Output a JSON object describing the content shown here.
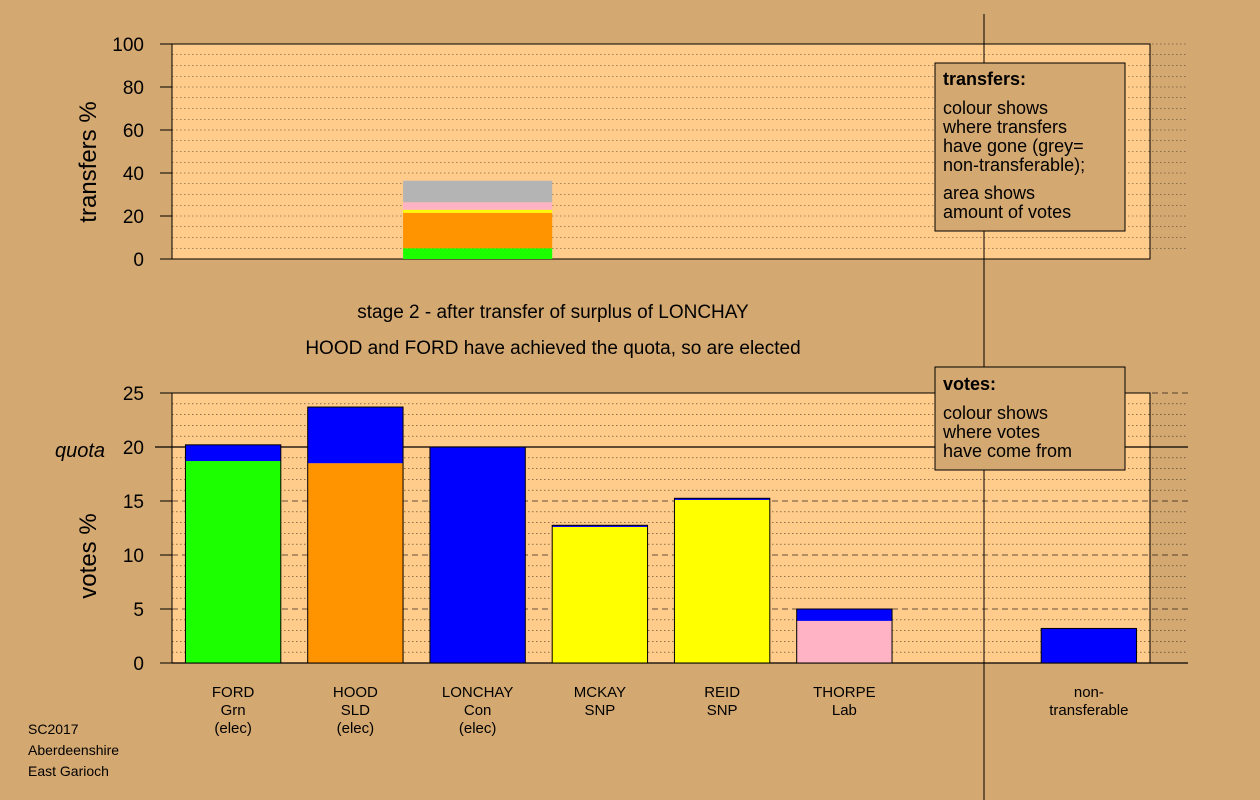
{
  "colors": {
    "background": "#d4a871",
    "plot_bg": "#ffcc8c",
    "Grn": "#1cff00",
    "SLD": "#ff9300",
    "Con": "#0000ff",
    "SNP": "#ffff00",
    "Lab": "#ffb3c4",
    "nontransferable": "#b4b4b4"
  },
  "caption": {
    "stage": "stage 2 - after transfer of surplus of LONCHAY",
    "status": "HOOD and FORD have achieved the quota, so are elected"
  },
  "footer": {
    "line1": "SC2017",
    "line2": "Aberdeenshire",
    "line3": "East Garioch"
  },
  "transfers_legend": {
    "title": "transfers:",
    "lines1": [
      "colour shows",
      "where transfers",
      "have gone (grey=",
      "non-transferable);"
    ],
    "lines2": [
      "area shows",
      "amount of votes"
    ]
  },
  "votes_legend": {
    "title": "votes:",
    "lines": [
      "colour shows",
      "where votes",
      "have come from"
    ]
  },
  "chart_data": [
    {
      "type": "bar",
      "stacked": true,
      "ylabel": "transfers %",
      "ylim": [
        0,
        100
      ],
      "yticks": [
        "0",
        "20",
        "40",
        "60",
        "80",
        "100"
      ],
      "grid": "dotted",
      "source_candidate": "LONCHAY",
      "segments": [
        {
          "to": "FORD",
          "color_key": "Grn",
          "value": 5
        },
        {
          "to": "HOOD",
          "color_key": "SLD",
          "value": 16.5
        },
        {
          "to": "MCKAY",
          "color_key": "SNP",
          "value": 0.7
        },
        {
          "to": "REID",
          "color_key": "SNP",
          "value": 0.7
        },
        {
          "to": "THORPE",
          "color_key": "Lab",
          "value": 3.5
        },
        {
          "to": "non-transferable",
          "color_key": "nontransferable",
          "value": 10
        }
      ]
    },
    {
      "type": "bar",
      "stacked": true,
      "ylabel": "votes %",
      "ylim": [
        0,
        25
      ],
      "yticks": [
        "0",
        "5",
        "10",
        "15",
        "20",
        "25"
      ],
      "quota": 20,
      "quota_label": "quota",
      "grid": "dotted",
      "categories": [
        {
          "name": "FORD",
          "party": "Grn",
          "status": "(elec)",
          "segments": [
            {
              "color_key": "Grn",
              "value": 18.7
            },
            {
              "color_key": "Con",
              "value": 1.5
            }
          ]
        },
        {
          "name": "HOOD",
          "party": "SLD",
          "status": "(elec)",
          "segments": [
            {
              "color_key": "SLD",
              "value": 18.5
            },
            {
              "color_key": "Con",
              "value": 5.2
            }
          ]
        },
        {
          "name": "LONCHAY",
          "party": "Con",
          "status": "(elec)",
          "segments": [
            {
              "color_key": "Con",
              "value": 20.0
            }
          ]
        },
        {
          "name": "MCKAY",
          "party": "SNP",
          "status": "",
          "segments": [
            {
              "color_key": "SNP",
              "value": 12.6
            },
            {
              "color_key": "Con",
              "value": 0.15
            }
          ]
        },
        {
          "name": "REID",
          "party": "SNP",
          "status": "",
          "segments": [
            {
              "color_key": "SNP",
              "value": 15.1
            },
            {
              "color_key": "Con",
              "value": 0.15
            }
          ]
        },
        {
          "name": "THORPE",
          "party": "Lab",
          "status": "",
          "segments": [
            {
              "color_key": "Lab",
              "value": 3.9
            },
            {
              "color_key": "Con",
              "value": 1.1
            }
          ]
        },
        {
          "name": "",
          "party": "",
          "status": "",
          "segments": []
        },
        {
          "name": "non-",
          "party": "transferable",
          "status": "",
          "segments": [
            {
              "color_key": "Con",
              "value": 3.2
            }
          ]
        }
      ]
    }
  ]
}
